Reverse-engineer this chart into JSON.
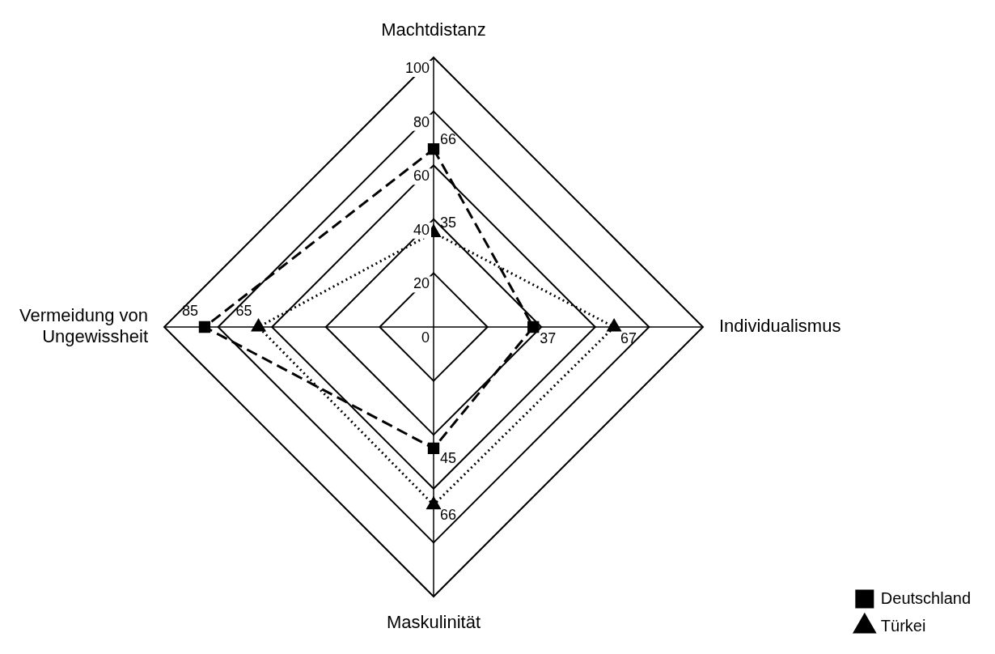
{
  "chart_data": {
    "type": "radar",
    "categories": [
      "Machtdistanz",
      "Individualismus",
      "Maskulinität",
      "Vermeidung von Ungewissheit"
    ],
    "series": [
      {
        "name": "Deutschland",
        "color": "#000000",
        "values": [
          66,
          37,
          45,
          85
        ],
        "marker": "square",
        "line_style": "dashed"
      },
      {
        "name": "Türkei",
        "color": "#000000",
        "values": [
          35,
          67,
          66,
          65
        ],
        "marker": "triangle",
        "line_style": "dotted"
      }
    ],
    "ylim": [
      0,
      100
    ],
    "yticks": [
      0,
      20,
      40,
      60,
      80,
      100
    ],
    "grid": true,
    "legend": "bottom right",
    "data_labels": true
  }
}
